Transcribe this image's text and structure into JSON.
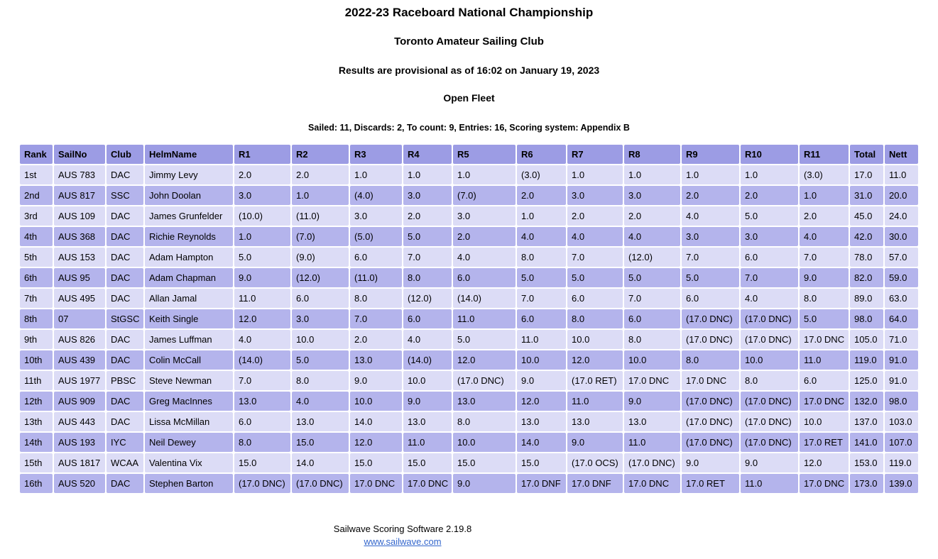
{
  "header": {
    "title": "2022-23 Raceboard National Championship",
    "venue": "Toronto Amateur Sailing Club",
    "provisional": "Results are provisional as of 16:02 on January 19, 2023",
    "fleet": "Open Fleet",
    "summary": "Sailed: 11, Discards: 2, To count: 9, Entries: 16, Scoring system: Appendix B"
  },
  "table": {
    "columns": [
      "Rank",
      "SailNo",
      "Club",
      "HelmName",
      "R1",
      "R2",
      "R3",
      "R4",
      "R5",
      "R6",
      "R7",
      "R8",
      "R9",
      "R10",
      "R11",
      "Total",
      "Nett"
    ],
    "rows": [
      [
        "1st",
        "AUS 783",
        "DAC",
        "Jimmy Levy",
        "2.0",
        "2.0",
        "1.0",
        "1.0",
        "1.0",
        "(3.0)",
        "1.0",
        "1.0",
        "1.0",
        "1.0",
        "(3.0)",
        "17.0",
        "11.0"
      ],
      [
        "2nd",
        "AUS 817",
        "SSC",
        "John Doolan",
        "3.0",
        "1.0",
        "(4.0)",
        "3.0",
        "(7.0)",
        "2.0",
        "3.0",
        "3.0",
        "2.0",
        "2.0",
        "1.0",
        "31.0",
        "20.0"
      ],
      [
        "3rd",
        "AUS 109",
        "DAC",
        "James Grunfelder",
        "(10.0)",
        "(11.0)",
        "3.0",
        "2.0",
        "3.0",
        "1.0",
        "2.0",
        "2.0",
        "4.0",
        "5.0",
        "2.0",
        "45.0",
        "24.0"
      ],
      [
        "4th",
        "AUS 368",
        "DAC",
        "Richie Reynolds",
        "1.0",
        "(7.0)",
        "(5.0)",
        "5.0",
        "2.0",
        "4.0",
        "4.0",
        "4.0",
        "3.0",
        "3.0",
        "4.0",
        "42.0",
        "30.0"
      ],
      [
        "5th",
        "AUS 153",
        "DAC",
        "Adam Hampton",
        "5.0",
        "(9.0)",
        "6.0",
        "7.0",
        "4.0",
        "8.0",
        "7.0",
        "(12.0)",
        "7.0",
        "6.0",
        "7.0",
        "78.0",
        "57.0"
      ],
      [
        "6th",
        "AUS 95",
        "DAC",
        "Adam Chapman",
        "9.0",
        "(12.0)",
        "(11.0)",
        "8.0",
        "6.0",
        "5.0",
        "5.0",
        "5.0",
        "5.0",
        "7.0",
        "9.0",
        "82.0",
        "59.0"
      ],
      [
        "7th",
        "AUS 495",
        "DAC",
        "Allan Jamal",
        "11.0",
        "6.0",
        "8.0",
        "(12.0)",
        "(14.0)",
        "7.0",
        "6.0",
        "7.0",
        "6.0",
        "4.0",
        "8.0",
        "89.0",
        "63.0"
      ],
      [
        "8th",
        "07",
        "StGSC",
        "Keith Single",
        "12.0",
        "3.0",
        "7.0",
        "6.0",
        "11.0",
        "6.0",
        "8.0",
        "6.0",
        "(17.0 DNC)",
        "(17.0 DNC)",
        "5.0",
        "98.0",
        "64.0"
      ],
      [
        "9th",
        "AUS 826",
        "DAC",
        "James Luffman",
        "4.0",
        "10.0",
        "2.0",
        "4.0",
        "5.0",
        "11.0",
        "10.0",
        "8.0",
        "(17.0 DNC)",
        "(17.0 DNC)",
        "17.0 DNC",
        "105.0",
        "71.0"
      ],
      [
        "10th",
        "AUS 439",
        "DAC",
        "Colin McCall",
        "(14.0)",
        "5.0",
        "13.0",
        "(14.0)",
        "12.0",
        "10.0",
        "12.0",
        "10.0",
        "8.0",
        "10.0",
        "11.0",
        "119.0",
        "91.0"
      ],
      [
        "11th",
        "AUS 1977",
        "PBSC",
        "Steve Newman",
        "7.0",
        "8.0",
        "9.0",
        "10.0",
        "(17.0 DNC)",
        "9.0",
        "(17.0 RET)",
        "17.0 DNC",
        "17.0 DNC",
        "8.0",
        "6.0",
        "125.0",
        "91.0"
      ],
      [
        "12th",
        "AUS 909",
        "DAC",
        "Greg MacInnes",
        "13.0",
        "4.0",
        "10.0",
        "9.0",
        "13.0",
        "12.0",
        "11.0",
        "9.0",
        "(17.0 DNC)",
        "(17.0 DNC)",
        "17.0 DNC",
        "132.0",
        "98.0"
      ],
      [
        "13th",
        "AUS 443",
        "DAC",
        "Lissa McMillan",
        "6.0",
        "13.0",
        "14.0",
        "13.0",
        "8.0",
        "13.0",
        "13.0",
        "13.0",
        "(17.0 DNC)",
        "(17.0 DNC)",
        "10.0",
        "137.0",
        "103.0"
      ],
      [
        "14th",
        "AUS 193",
        "IYC",
        "Neil Dewey",
        "8.0",
        "15.0",
        "12.0",
        "11.0",
        "10.0",
        "14.0",
        "9.0",
        "11.0",
        "(17.0 DNC)",
        "(17.0 DNC)",
        "17.0 RET",
        "141.0",
        "107.0"
      ],
      [
        "15th",
        "AUS 1817",
        "WCAA",
        "Valentina Vix",
        "15.0",
        "14.0",
        "15.0",
        "15.0",
        "15.0",
        "15.0",
        "(17.0 OCS)",
        "(17.0 DNC)",
        "9.0",
        "9.0",
        "12.0",
        "153.0",
        "119.0"
      ],
      [
        "16th",
        "AUS 520",
        "DAC",
        "Stephen Barton",
        "(17.0 DNC)",
        "(17.0 DNC)",
        "17.0 DNC",
        "17.0 DNC",
        "9.0",
        "17.0 DNF",
        "17.0 DNF",
        "17.0 DNC",
        "17.0 RET",
        "11.0",
        "17.0 DNC",
        "173.0",
        "139.0"
      ]
    ]
  },
  "footer": {
    "software": "Sailwave Scoring Software 2.19.8",
    "link": "www.sailwave.com"
  },
  "colors": {
    "header_bg": "#9c9ce4",
    "row_light": "#dcdcf6",
    "row_dark": "#b4b4ec",
    "link_color": "#3366cc"
  }
}
